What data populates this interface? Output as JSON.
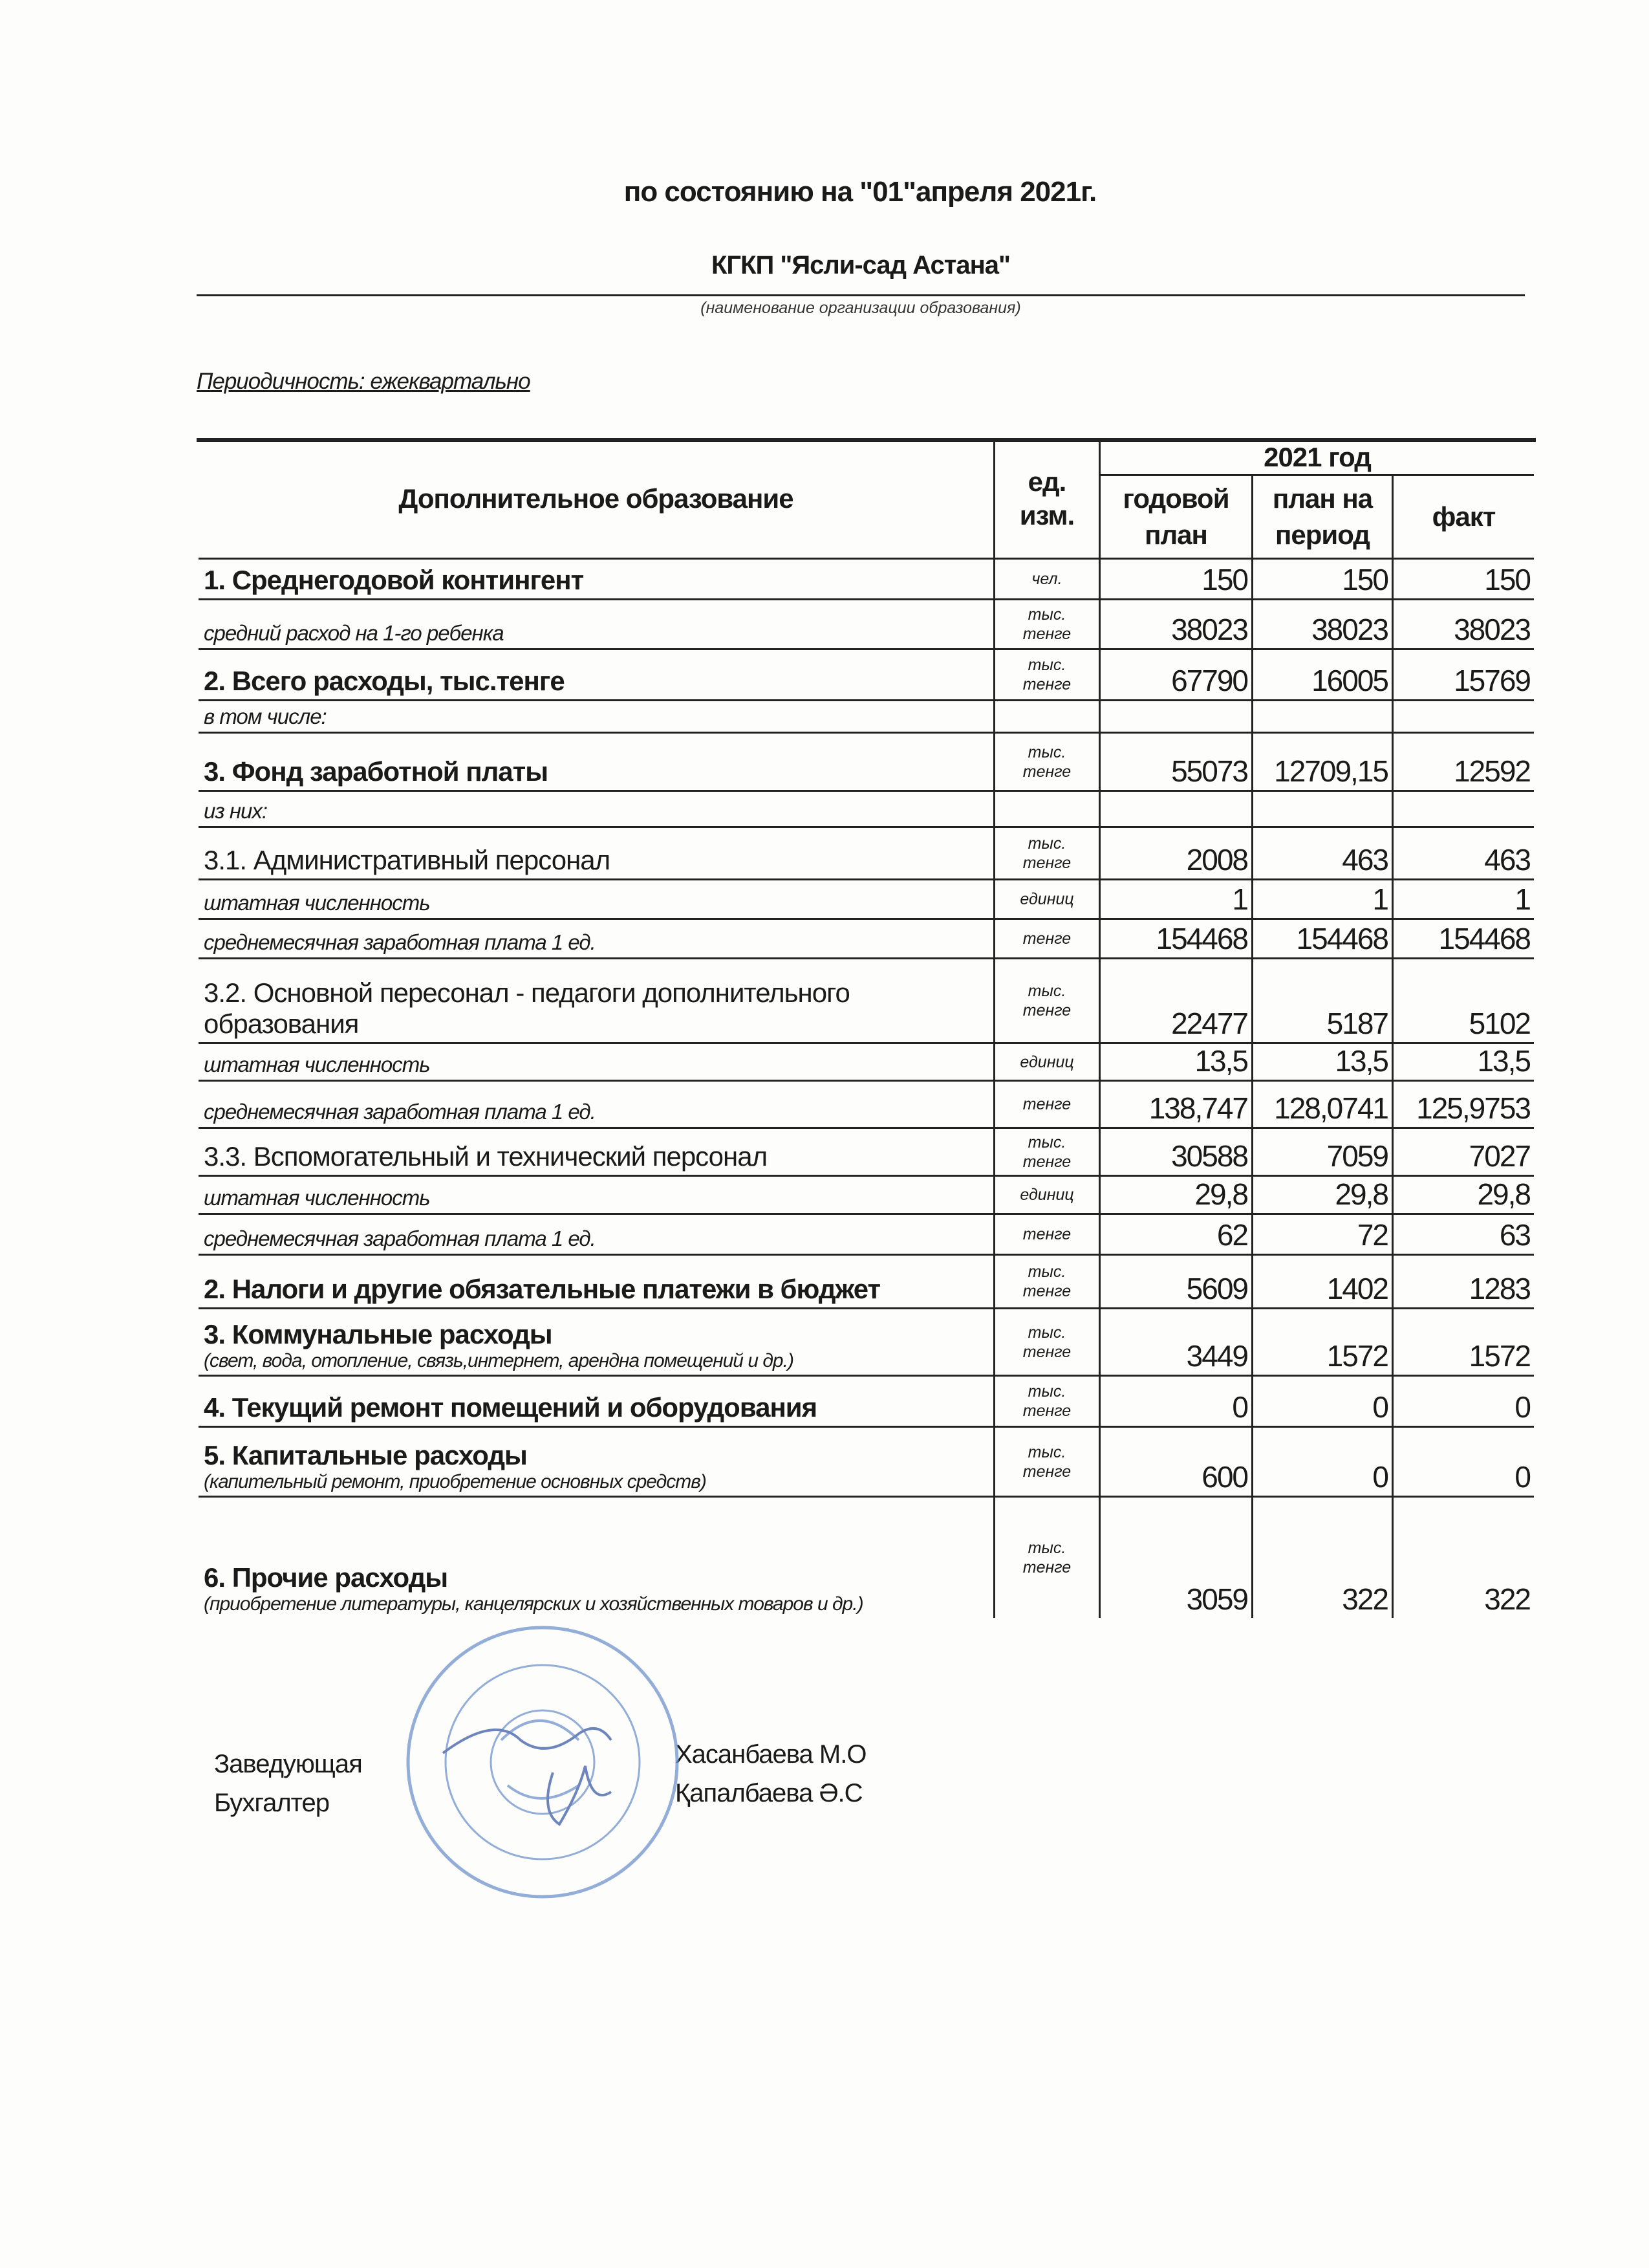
{
  "header": {
    "title": "по состоянию на \"01\"апреля 2021г.",
    "organization": "КГКП \"Ясли-сад Астана\"",
    "organization_caption": "(наименование организации образования)",
    "periodicity": "Периодичность: ежеквартально"
  },
  "table": {
    "col_title": "Дополнительное образование",
    "col_unit": "ед.\nизм.",
    "year_header": "2021 год",
    "col_annual": "годовой\nплан",
    "col_period": "план на\nпериод",
    "col_fact": "факт",
    "rows": [
      {
        "label": "1. Среднегодовой контингент",
        "style": "bold",
        "unit": "чел.",
        "values": [
          "150",
          "150",
          "150"
        ]
      },
      {
        "label": "средний расход на 1-го ребенка",
        "style": "italic",
        "unit": "тыс.\nтенге",
        "values": [
          "38023",
          "38023",
          "38023"
        ]
      },
      {
        "label": "2. Всего расходы, тыс.тенге",
        "style": "bold",
        "unit": "тыс.\nтенге",
        "values": [
          "67790",
          "16005",
          "15769"
        ]
      },
      {
        "label": "в том числе:",
        "style": "italic",
        "unit": "",
        "values": [
          "",
          "",
          ""
        ]
      },
      {
        "label": "3. Фонд заработной платы",
        "style": "bold",
        "unit": "тыс.\nтенге",
        "values": [
          "55073",
          "12709,15",
          "12592"
        ]
      },
      {
        "label": "из них:",
        "style": "italic",
        "unit": "",
        "values": [
          "",
          "",
          ""
        ]
      },
      {
        "label": "3.1. Административный персонал",
        "style": "normal",
        "unit": "тыс.\nтенге",
        "values": [
          "2008",
          "463",
          "463"
        ]
      },
      {
        "label": "штатная численность",
        "style": "italic",
        "unit": "единиц",
        "values": [
          "1",
          "1",
          "1"
        ]
      },
      {
        "label": "среднемесячная заработная плата 1 ед.",
        "style": "italic",
        "unit": "тенге",
        "values": [
          "154468",
          "154468",
          "154468"
        ]
      },
      {
        "label": "3.2. Основной пересонал - педагоги дополнительного образования",
        "style": "normal",
        "unit": "тыс.\nтенге",
        "values": [
          "22477",
          "5187",
          "5102"
        ]
      },
      {
        "label": "штатная численность",
        "style": "italic",
        "unit": "единиц",
        "values": [
          "13,5",
          "13,5",
          "13,5"
        ]
      },
      {
        "label": "среднемесячная заработная плата 1 ед.",
        "style": "italic",
        "unit": "тенге",
        "values": [
          "138,747",
          "128,0741",
          "125,9753"
        ]
      },
      {
        "label": "3.3. Вспомогательный и технический персонал",
        "style": "normal",
        "unit": "тыс.\nтенге",
        "values": [
          "30588",
          "7059",
          "7027"
        ]
      },
      {
        "label": "штатная численность",
        "style": "italic",
        "unit": "единиц",
        "values": [
          "29,8",
          "29,8",
          "29,8"
        ]
      },
      {
        "label": "среднемесячная заработная плата 1 ед.",
        "style": "italic",
        "unit": "тенге",
        "values": [
          "62",
          "72",
          "63"
        ]
      },
      {
        "label": "2. Налоги и другие обязательные платежи в бюджет",
        "style": "bold",
        "unit": "тыс.\nтенге",
        "values": [
          "5609",
          "1402",
          "1283"
        ]
      },
      {
        "label": "3. Коммунальные расходы",
        "sublabel": "(свет, вода, отопление, связь,интернет, арендна помещений и др.)",
        "style": "bold",
        "unit": "тыс.\nтенге",
        "values": [
          "3449",
          "1572",
          "1572"
        ]
      },
      {
        "label": "4. Текущий ремонт помещений и оборудования",
        "style": "bold",
        "unit": "тыс.\nтенге",
        "values": [
          "0",
          "0",
          "0"
        ]
      },
      {
        "label": "5. Капитальные расходы",
        "sublabel": "(капительный ремонт, приобретение основных средств)",
        "style": "bold",
        "unit": "тыс.\nтенге",
        "values": [
          "600",
          "0",
          "0"
        ]
      },
      {
        "label": "6. Прочие расходы",
        "sublabel": "(приобретение литературы, канцелярских и хозяйственных товаров и др.)",
        "style": "bold",
        "unit": "тыс.\nтенге",
        "values": [
          "3059",
          "322",
          "322"
        ]
      }
    ]
  },
  "signatures": {
    "head_role": "Заведующая",
    "accountant_role": "Бухгалтер",
    "head_name": "Хасанбаева М.О",
    "accountant_name": "Қапалбаева Ә.С"
  },
  "stamp": {
    "color": "#6f93cc"
  }
}
